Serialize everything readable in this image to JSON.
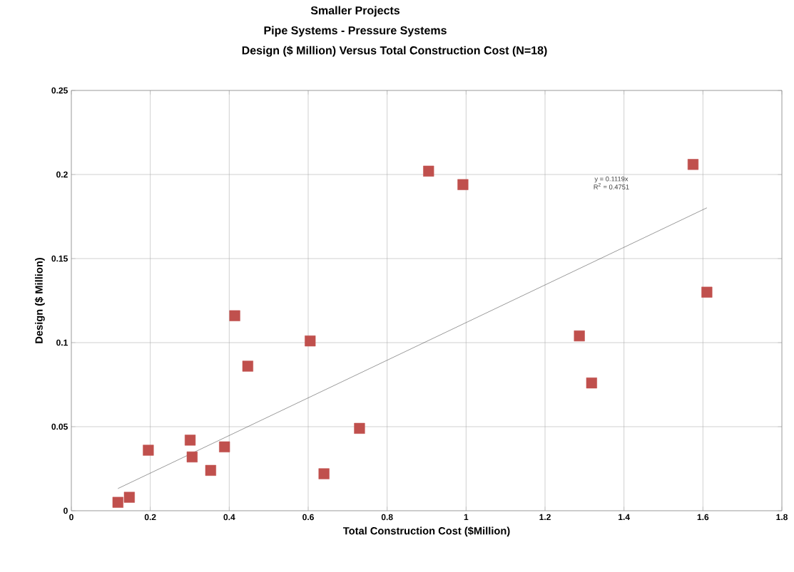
{
  "chart_data": {
    "type": "scatter",
    "title": "Smaller Projects",
    "subtitle": "Pipe Systems - Pressure Systems",
    "xlabel": "Total Construction Cost ($Million)",
    "ylabel": "Design ($ Million)",
    "annotations": [
      "Design  ($ Million) Versus Total Construction Cost  (N=18)",
      "y = 0.1119x",
      "R$^{2}$ = 0.4751"
    ],
    "series": [
      {
        "color": "#c0504d",
        "marker": "square",
        "x": [
          0.118,
          0.147,
          0.195,
          0.301,
          0.306,
          0.353,
          0.388,
          0.414,
          0.447,
          0.605,
          0.64,
          0.73,
          0.905,
          0.992,
          1.287,
          1.318,
          1.575,
          1.61
        ],
        "values": [
          0.005,
          0.008,
          0.036,
          0.042,
          0.032,
          0.024,
          0.038,
          0.116,
          0.086,
          0.101,
          0.022,
          0.049,
          0.202,
          0.194,
          0.104,
          0.076,
          0.206,
          0.13
        ]
      },
      {
        "type": "line",
        "color": "#404040",
        "marker": "none",
        "x": [
          0.118,
          1.61
        ],
        "values": [
          0.0132,
          0.1802
        ]
      }
    ],
    "xlim": [
      0,
      1.8
    ],
    "ylim": [
      0,
      0.25
    ],
    "xticks": [
      0,
      0.2,
      0.4,
      0.6,
      0.8,
      1,
      1.2,
      1.4,
      1.6,
      1.8
    ],
    "yticks": [
      0,
      0.05,
      0.1,
      0.15,
      0.2,
      0.25
    ],
    "grid": true
  }
}
